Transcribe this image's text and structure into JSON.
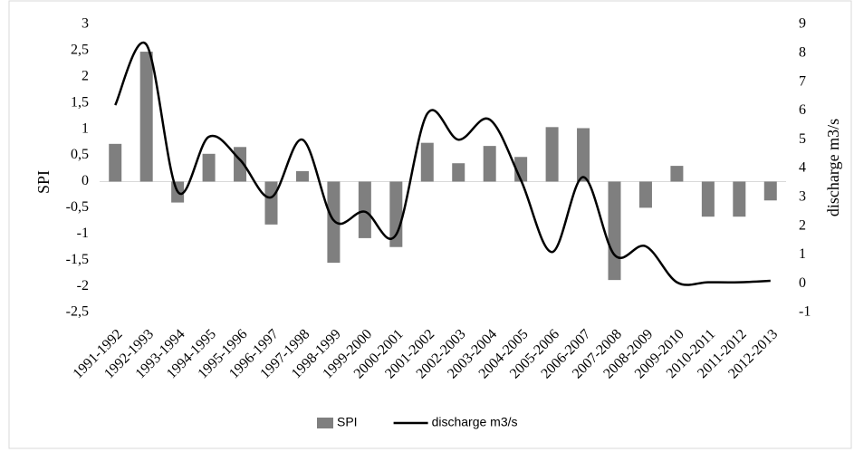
{
  "chart_data": {
    "type": "bar",
    "y_label": "SPI",
    "y2_label": "discharge m3/s",
    "categories": [
      "1991-1992",
      "1992-1993",
      "1993-1994",
      "1994-1995",
      "1995-1996",
      "1996-1997",
      "1997-1998",
      "1998-1999",
      "1999-2000",
      "2000-2001",
      "2001-2002",
      "2002-2003",
      "2003-2004",
      "2004-2005",
      "2005-2006",
      "2006-2007",
      "2007-2008",
      "2008-2009",
      "2009-2010",
      "2010-2011",
      "2011-2012",
      "2012-2013"
    ],
    "series": [
      {
        "name": "SPI",
        "type": "bar",
        "color": "#7f7f7f",
        "values": [
          0.72,
          2.48,
          -0.4,
          0.53,
          0.66,
          -0.82,
          0.2,
          -1.55,
          -1.08,
          -1.25,
          0.74,
          0.35,
          0.68,
          0.47,
          1.04,
          1.02,
          -1.88,
          -0.5,
          0.3,
          -0.67,
          -0.67,
          -0.36
        ]
      },
      {
        "name": "discharge m3/s",
        "type": "line",
        "axis": "y2",
        "color": "#000000",
        "smooth": true,
        "values": [
          6.2,
          8.3,
          3.2,
          5.1,
          4.3,
          3.0,
          5.0,
          2.2,
          2.5,
          1.7,
          5.9,
          5.0,
          5.7,
          3.6,
          1.1,
          3.7,
          1.0,
          1.3,
          0.05,
          0.05,
          0.05,
          0.1
        ]
      }
    ],
    "ylim": [
      -2.5,
      3
    ],
    "yticks": [
      {
        "value": -2.5,
        "label": "-2,5"
      },
      -2,
      {
        "value": -1.5,
        "label": "-1,5"
      },
      -1,
      {
        "value": -0.5,
        "label": "-0,5"
      },
      0,
      {
        "value": 0.5,
        "label": "0,5"
      },
      1,
      {
        "value": 1.5,
        "label": "1,5"
      },
      2,
      {
        "value": 2.5,
        "label": "2,5"
      },
      3
    ],
    "y2lim": [
      -1,
      9
    ],
    "y2ticks": [
      -1,
      0,
      1,
      2,
      3,
      4,
      5,
      6,
      7,
      8,
      9
    ],
    "grid": false,
    "legend": "bottom"
  }
}
